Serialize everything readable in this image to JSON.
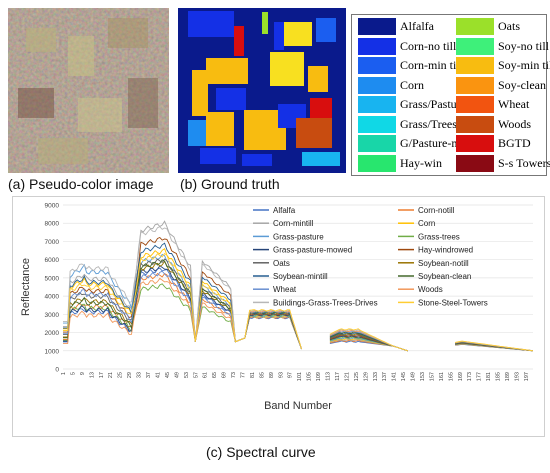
{
  "panels": {
    "pseudo_caption": "(a) Pseudo-color image",
    "gt_caption": "(b) Ground truth",
    "curve_caption": "(c) Spectral curve"
  },
  "class_legend": [
    {
      "label": "Alfalfa",
      "color": "#0a1a8c"
    },
    {
      "label": "Corn-no till",
      "color": "#1430e6"
    },
    {
      "label": "Corn-min till",
      "color": "#1b5ef0"
    },
    {
      "label": "Corn",
      "color": "#1e8cf0"
    },
    {
      "label": "Grass/Pasture",
      "color": "#18b4f0"
    },
    {
      "label": "Grass/Trees",
      "color": "#10d8e6"
    },
    {
      "label": "G/Pasture-m",
      "color": "#18d6a8"
    },
    {
      "label": "Hay-win",
      "color": "#28e66e"
    },
    {
      "label": "Oats",
      "color": "#9be02a"
    },
    {
      "label": "Soy-no till",
      "color": "#3ef07a"
    },
    {
      "label": "Soy-min till",
      "color": "#f8bc10"
    },
    {
      "label": "Soy-clean",
      "color": "#fa9410"
    },
    {
      "label": "Wheat",
      "color": "#f25410"
    },
    {
      "label": "Woods",
      "color": "#c84c10"
    },
    {
      "label": "BGTD",
      "color": "#d80e0e"
    },
    {
      "label": "S-s Towers",
      "color": "#8a0a14"
    }
  ],
  "chart_data": {
    "type": "line",
    "xlabel": "Band Number",
    "ylabel": "Reflectance",
    "ylim": [
      0,
      9000
    ],
    "yticks": [
      0,
      1000,
      2000,
      3000,
      4000,
      5000,
      6000,
      7000,
      8000,
      9000
    ],
    "xticks": [
      1,
      5,
      9,
      13,
      17,
      21,
      25,
      29,
      33,
      37,
      41,
      45,
      49,
      53,
      57,
      61,
      65,
      69,
      73,
      77,
      81,
      85,
      89,
      93,
      97,
      101,
      105,
      109,
      113,
      117,
      121,
      125,
      129,
      133,
      137,
      141,
      145,
      149,
      153,
      157,
      161,
      165,
      169,
      173,
      177,
      181,
      185,
      189,
      193,
      197
    ],
    "xlim": [
      1,
      200
    ],
    "grid": "horizontal",
    "legend_placement": "top-right",
    "series": [
      {
        "name": "Alfalfa",
        "color": "#4472c4",
        "peak": 5500,
        "blue": 3300
      },
      {
        "name": "Corn-notill",
        "color": "#ed7d31",
        "peak": 5200,
        "blue": 3600
      },
      {
        "name": "Corn-mintill",
        "color": "#a5a5a5",
        "peak": 8000,
        "blue": 5200
      },
      {
        "name": "Corn",
        "color": "#ffc000",
        "peak": 6500,
        "blue": 4900
      },
      {
        "name": "Grass-pasture",
        "color": "#5b9bd5",
        "peak": 6200,
        "blue": 5600
      },
      {
        "name": "Grass-trees",
        "color": "#70ad47",
        "peak": 4600,
        "blue": 3500
      },
      {
        "name": "Grass-pasture-mowed",
        "color": "#264478",
        "peak": 5600,
        "blue": 3400
      },
      {
        "name": "Hay-windrowed",
        "color": "#9e480e",
        "peak": 7200,
        "blue": 4500
      },
      {
        "name": "Oats",
        "color": "#636363",
        "peak": 6000,
        "blue": 4200
      },
      {
        "name": "Soybean-notill",
        "color": "#997300",
        "peak": 5800,
        "blue": 3900
      },
      {
        "name": "Soybean-mintill",
        "color": "#255e91",
        "peak": 6800,
        "blue": 5000
      },
      {
        "name": "Soybean-clean",
        "color": "#43682b",
        "peak": 5900,
        "blue": 3800
      },
      {
        "name": "Wheat",
        "color": "#698ed0",
        "peak": 5300,
        "blue": 4300
      },
      {
        "name": "Woods",
        "color": "#f1975a",
        "peak": 4900,
        "blue": 3100
      },
      {
        "name": "Buildings-Grass-Trees-Drives",
        "color": "#b7b7b7",
        "peak": 7800,
        "blue": 5800
      },
      {
        "name": "Stone-Steel-Towers",
        "color": "#ffcd33",
        "peak": 6300,
        "blue": 4700
      }
    ]
  }
}
